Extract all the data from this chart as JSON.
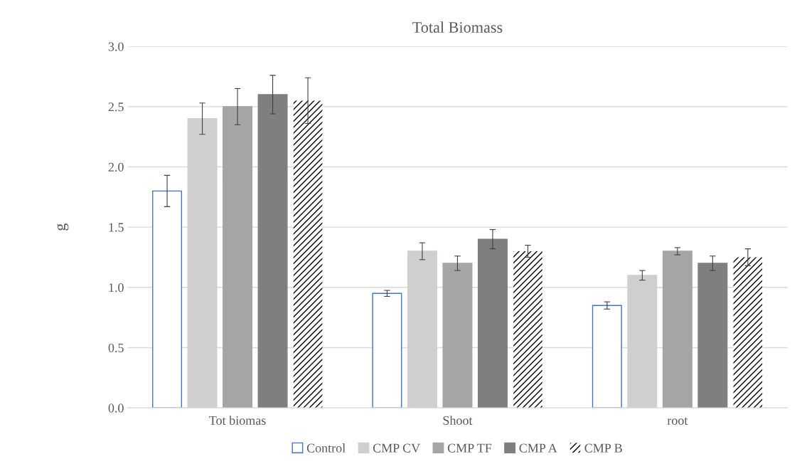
{
  "chart_data": {
    "type": "bar",
    "title": "Total Biomass",
    "ylabel": "g",
    "categories": [
      "Tot biomas",
      "Shoot",
      "root"
    ],
    "series": [
      {
        "name": "Control",
        "color": "#ffffff",
        "values": [
          1.8,
          0.95,
          0.85
        ],
        "errors": [
          0.13,
          0.025,
          0.03
        ]
      },
      {
        "name": "CMP CV",
        "color": "#d0cece",
        "values": [
          2.4,
          1.3,
          1.1
        ],
        "errors": [
          0.13,
          0.07,
          0.04
        ]
      },
      {
        "name": "CMP TF",
        "color": "#a5a5a5",
        "values": [
          2.5,
          1.2,
          1.3
        ],
        "errors": [
          0.15,
          0.06,
          0.03
        ]
      },
      {
        "name": "CMP A",
        "color": "#7f7f7f",
        "values": [
          2.6,
          1.4,
          1.2
        ],
        "errors": [
          0.16,
          0.08,
          0.06
        ]
      },
      {
        "name": "CMP B",
        "color": "#000000",
        "values": [
          2.55,
          1.3,
          1.25
        ],
        "errors": [
          0.19,
          0.05,
          0.07
        ]
      }
    ],
    "ylim": [
      0,
      3.0
    ],
    "yticks": [
      {
        "value": 0,
        "label": "0.0"
      },
      {
        "value": 0.5,
        "label": "0.5"
      },
      {
        "value": 1.0,
        "label": "1.0"
      },
      {
        "value": 1.5,
        "label": "1.5"
      },
      {
        "value": 2.0,
        "label": "2.0"
      },
      {
        "value": 2.5,
        "label": "2.5"
      },
      {
        "value": 3.0,
        "label": "3.0"
      }
    ],
    "grid": "y",
    "legend": "bottom"
  }
}
